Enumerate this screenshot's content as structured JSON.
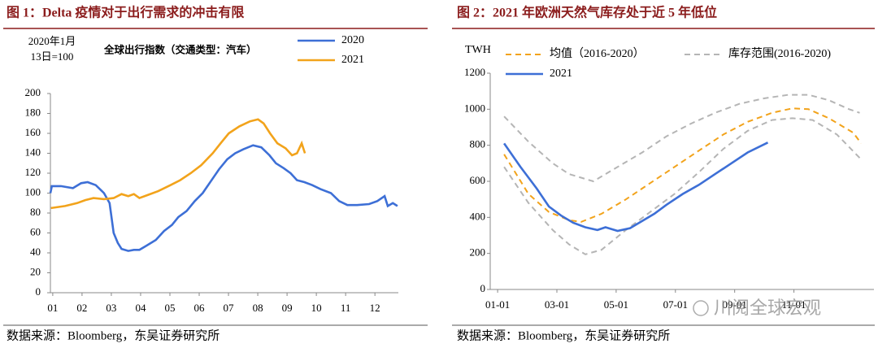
{
  "chart_data": [
    {
      "type": "line",
      "title": "图 1：Delta 疫情对于出行需求的冲击有限",
      "source": "数据来源：Bloomberg，东吴证券研究所",
      "annotations": [
        "2020年1月",
        "13日=100",
        "全球出行指数（交通类型：汽车）"
      ],
      "xlim": [
        0.92,
        12.8
      ],
      "xticks": [
        {
          "value": 1,
          "label": "01"
        },
        {
          "value": 2,
          "label": "02"
        },
        {
          "value": 3,
          "label": "03"
        },
        {
          "value": 4,
          "label": "04"
        },
        {
          "value": 5,
          "label": "05"
        },
        {
          "value": 6,
          "label": "06"
        },
        {
          "value": 7,
          "label": "07"
        },
        {
          "value": 8,
          "label": "08"
        },
        {
          "value": 9,
          "label": "09"
        },
        {
          "value": 10,
          "label": "10"
        },
        {
          "value": 11,
          "label": "11"
        },
        {
          "value": 12,
          "label": "12"
        }
      ],
      "ylim": [
        0,
        200
      ],
      "yticks": [
        0,
        20,
        40,
        60,
        80,
        100,
        120,
        140,
        160,
        180,
        200
      ],
      "series": [
        {
          "name": "2020",
          "color": "#3d6fd6",
          "style": "solid",
          "x": [
            0.92,
            0.97,
            1.28,
            1.69,
            1.97,
            2.19,
            2.47,
            2.75,
            2.94,
            3.08,
            3.22,
            3.35,
            3.58,
            3.77,
            3.96,
            4.19,
            4.52,
            4.8,
            5.07,
            5.29,
            5.57,
            5.85,
            6.12,
            6.4,
            6.68,
            6.96,
            7.23,
            7.51,
            7.84,
            8.12,
            8.4,
            8.62,
            8.89,
            9.12,
            9.34,
            9.59,
            9.86,
            10.14,
            10.5,
            10.78,
            11.06,
            11.39,
            11.8,
            12.08,
            12.33,
            12.44,
            12.61,
            12.77
          ],
          "values": [
            100,
            107,
            107,
            105,
            110,
            111,
            108,
            100,
            90,
            60,
            50,
            44,
            42,
            43,
            43,
            47,
            53,
            62,
            68,
            76,
            82,
            92,
            100,
            112,
            124,
            134,
            140,
            144,
            148,
            146,
            138,
            130,
            125,
            120,
            113,
            111,
            108,
            104,
            100,
            92,
            88,
            88,
            89,
            92,
            97,
            87,
            90,
            87
          ]
        },
        {
          "name": "2021",
          "color": "#f2a31b",
          "style": "solid",
          "x": [
            0.94,
            1.42,
            1.83,
            2.11,
            2.39,
            2.75,
            3.08,
            3.35,
            3.58,
            3.77,
            3.96,
            4.24,
            4.6,
            5.02,
            5.35,
            5.71,
            6.07,
            6.46,
            6.73,
            7.01,
            7.37,
            7.73,
            8.01,
            8.2,
            8.42,
            8.67,
            8.95,
            9.17,
            9.34,
            9.5,
            9.61
          ],
          "values": [
            85,
            87,
            90,
            93,
            95,
            94,
            95,
            99,
            97,
            99,
            95,
            98,
            102,
            108,
            113,
            120,
            128,
            140,
            150,
            160,
            167,
            172,
            174,
            170,
            160,
            150,
            145,
            138,
            140,
            150,
            140
          ]
        }
      ]
    },
    {
      "type": "line",
      "title": "图 2：2021 年欧洲天然气库存处于近 5 年低位",
      "source": "数据来源：Bloomberg，东吴证券研究所",
      "y_label": "TWH",
      "watermark": "川阅全球宏观",
      "xlim": [
        0.75,
        13.7
      ],
      "xticks": [
        {
          "value": 1,
          "label": "01-01"
        },
        {
          "value": 3,
          "label": "03-01"
        },
        {
          "value": 5,
          "label": "05-01"
        },
        {
          "value": 7,
          "label": "07-01"
        },
        {
          "value": 9,
          "label": "09-01"
        },
        {
          "value": 11,
          "label": "11-01"
        }
      ],
      "ylim": [
        0,
        1200
      ],
      "yticks": [
        0,
        200,
        400,
        600,
        800,
        1000,
        1200
      ],
      "series": [
        {
          "name": "均值（2016-2020）",
          "color": "#f2a31b",
          "style": "dashed",
          "x": [
            1.22,
            2.04,
            2.73,
            3.41,
            3.82,
            4.51,
            5.33,
            6.15,
            6.97,
            7.79,
            8.62,
            9.44,
            10.26,
            10.95,
            11.49,
            12.18,
            13.0,
            13.27
          ],
          "values": [
            750,
            530,
            430,
            385,
            375,
            420,
            500,
            590,
            680,
            770,
            860,
            930,
            980,
            1005,
            1000,
            950,
            870,
            810
          ]
        },
        {
          "name": "库存范围(2016-2020)",
          "color": "#b5b5b5",
          "style": "dashed",
          "upper": {
            "x": [
              1.22,
              2.04,
              2.86,
              3.41,
              4.23,
              5.05,
              5.88,
              6.7,
              7.52,
              8.34,
              9.16,
              9.99,
              10.81,
              11.49,
              12.18,
              12.86,
              13.22
            ],
            "values": [
              960,
              820,
              700,
              640,
              600,
              680,
              760,
              850,
              920,
              980,
              1030,
              1060,
              1080,
              1080,
              1050,
              1000,
              980
            ]
          },
          "lower": {
            "x": [
              1.22,
              2.04,
              2.86,
              3.41,
              3.96,
              4.51,
              5.33,
              6.15,
              6.97,
              7.79,
              8.62,
              9.44,
              10.26,
              10.95,
              11.63,
              12.45,
              13.22
            ],
            "values": [
              680,
              480,
              330,
              250,
              195,
              220,
              330,
              430,
              530,
              650,
              780,
              880,
              940,
              950,
              940,
              860,
              730
            ]
          }
        },
        {
          "name": "2021",
          "color": "#3d6fd6",
          "style": "solid",
          "x": [
            1.22,
            1.77,
            2.32,
            2.73,
            3.14,
            3.55,
            3.96,
            4.37,
            4.64,
            5.05,
            5.47,
            5.88,
            6.29,
            6.7,
            7.25,
            7.79,
            8.34,
            8.89,
            9.44,
            10.12
          ],
          "values": [
            810,
            680,
            560,
            460,
            410,
            370,
            345,
            330,
            345,
            325,
            340,
            380,
            420,
            470,
            530,
            580,
            640,
            700,
            760,
            815
          ]
        }
      ]
    }
  ]
}
